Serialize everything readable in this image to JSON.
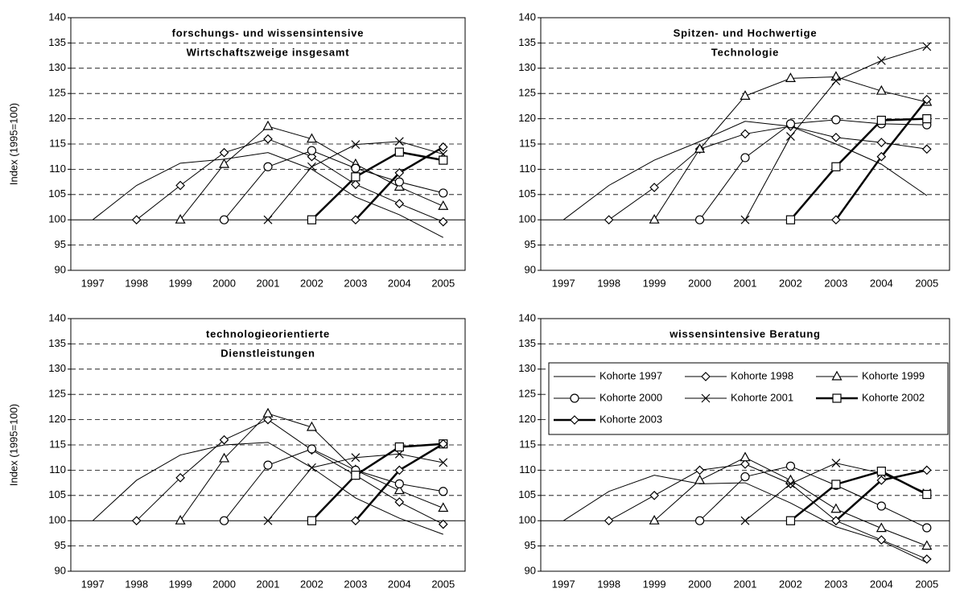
{
  "chart_data": [
    {
      "type": "line",
      "title": [
        "forschungs- und wissensintensive",
        "Wirtschaftszweige insgesamt"
      ],
      "ylabel": "Index (1995=100)",
      "categories": [
        "1997",
        "1998",
        "1999",
        "2000",
        "2001",
        "2002",
        "2003",
        "2004",
        "2005"
      ],
      "ylim": [
        90,
        140
      ],
      "yticks": [
        90,
        95,
        100,
        105,
        110,
        115,
        120,
        125,
        130,
        135,
        140
      ],
      "grid": "dashed",
      "hline": 100,
      "series": [
        {
          "color": "#000000",
          "marker": "none",
          "width": 1,
          "values": [
            100,
            106.8,
            111.2,
            112,
            113.3,
            110,
            104.5,
            101,
            96.5
          ]
        },
        {
          "color": "#000000",
          "marker": "diamond",
          "width": 1,
          "values": [
            null,
            100,
            106.8,
            113.3,
            116,
            112.5,
            107,
            103.2,
            99.6
          ]
        },
        {
          "color": "#000000",
          "marker": "triangle",
          "width": 1,
          "values": [
            null,
            null,
            100,
            111,
            118.5,
            116,
            111,
            106.5,
            102.7
          ]
        },
        {
          "color": "#000000",
          "marker": "circle",
          "width": 1,
          "values": [
            null,
            null,
            null,
            100,
            110.5,
            113.7,
            110.2,
            107.5,
            105.3
          ]
        },
        {
          "color": "#000000",
          "marker": "x",
          "width": 1,
          "values": [
            null,
            null,
            null,
            null,
            100,
            110.5,
            114.9,
            115.5,
            113
          ]
        },
        {
          "color": "#000000",
          "marker": "square",
          "width": 2.5,
          "values": [
            null,
            null,
            null,
            null,
            null,
            100,
            108.5,
            113.4,
            111.8
          ]
        },
        {
          "color": "#000000",
          "marker": "diamond",
          "width": 2.5,
          "values": [
            null,
            null,
            null,
            null,
            null,
            null,
            100,
            109.3,
            114.4
          ]
        }
      ]
    },
    {
      "type": "line",
      "title": [
        "Spitzen- und Hochwertige",
        "Technologie"
      ],
      "categories": [
        "1997",
        "1998",
        "1999",
        "2000",
        "2001",
        "2002",
        "2003",
        "2004",
        "2005"
      ],
      "ylim": [
        90,
        140
      ],
      "yticks": [
        90,
        95,
        100,
        105,
        110,
        115,
        120,
        125,
        130,
        135,
        140
      ],
      "grid": "dashed",
      "hline": 100,
      "series": [
        {
          "color": "#000000",
          "marker": "none",
          "width": 1,
          "values": [
            100,
            106.8,
            111.8,
            115.5,
            119.5,
            118.5,
            115,
            111,
            104.8
          ]
        },
        {
          "color": "#000000",
          "marker": "diamond",
          "width": 1,
          "values": [
            null,
            100,
            106.4,
            114,
            117,
            118.5,
            116.3,
            115.3,
            114
          ]
        },
        {
          "color": "#000000",
          "marker": "triangle",
          "width": 1,
          "values": [
            null,
            null,
            100,
            114,
            124.5,
            128,
            128.3,
            125.5,
            123.3
          ]
        },
        {
          "color": "#000000",
          "marker": "circle",
          "width": 1,
          "values": [
            null,
            null,
            null,
            100,
            112.3,
            119,
            119.8,
            119,
            118.8
          ]
        },
        {
          "color": "#000000",
          "marker": "x",
          "width": 1,
          "values": [
            null,
            null,
            null,
            null,
            100,
            116.5,
            127.5,
            131.5,
            134.3
          ]
        },
        {
          "color": "#000000",
          "marker": "square",
          "width": 2.5,
          "values": [
            null,
            null,
            null,
            null,
            null,
            100,
            110.5,
            119.7,
            120
          ]
        },
        {
          "color": "#000000",
          "marker": "diamond",
          "width": 2.5,
          "values": [
            null,
            null,
            null,
            null,
            null,
            null,
            100,
            112.5,
            123.8
          ]
        }
      ]
    },
    {
      "type": "line",
      "title": [
        "technologieorientierte",
        "Dienstleistungen"
      ],
      "ylabel": "Index (1995=100)",
      "categories": [
        "1997",
        "1998",
        "1999",
        "2000",
        "2001",
        "2002",
        "2003",
        "2004",
        "2005"
      ],
      "ylim": [
        90,
        140
      ],
      "yticks": [
        90,
        95,
        100,
        105,
        110,
        115,
        120,
        125,
        130,
        135,
        140
      ],
      "grid": "dashed",
      "hline": 100,
      "series": [
        {
          "color": "#000000",
          "marker": "none",
          "width": 1,
          "values": [
            100,
            108,
            113,
            115,
            115.5,
            110.5,
            104.5,
            100.5,
            97.3
          ]
        },
        {
          "color": "#000000",
          "marker": "diamond",
          "width": 1,
          "values": [
            null,
            100,
            108.5,
            116,
            120,
            114,
            109,
            103.7,
            99.3
          ]
        },
        {
          "color": "#000000",
          "marker": "triangle",
          "width": 1,
          "values": [
            null,
            null,
            100,
            112.3,
            121.2,
            118.5,
            110,
            106,
            102.5
          ]
        },
        {
          "color": "#000000",
          "marker": "circle",
          "width": 1,
          "values": [
            null,
            null,
            null,
            100,
            111,
            114.2,
            110,
            107.3,
            105.8
          ]
        },
        {
          "color": "#000000",
          "marker": "x",
          "width": 1,
          "values": [
            null,
            null,
            null,
            null,
            100,
            110.5,
            112.5,
            113.2,
            111.5
          ]
        },
        {
          "color": "#000000",
          "marker": "square",
          "width": 2.5,
          "values": [
            null,
            null,
            null,
            null,
            null,
            100,
            109,
            114.6,
            115.2
          ]
        },
        {
          "color": "#000000",
          "marker": "diamond",
          "width": 2.5,
          "values": [
            null,
            null,
            null,
            null,
            null,
            null,
            100,
            110,
            115.2
          ]
        }
      ]
    },
    {
      "type": "line",
      "title": [
        "wissensintensive Beratung"
      ],
      "legend": "upper",
      "categories": [
        "1997",
        "1998",
        "1999",
        "2000",
        "2001",
        "2002",
        "2003",
        "2004",
        "2005"
      ],
      "ylim": [
        90,
        140
      ],
      "yticks": [
        90,
        95,
        100,
        105,
        110,
        115,
        120,
        125,
        130,
        135,
        140
      ],
      "grid": "dashed",
      "hline": 100,
      "series": [
        {
          "name": "Kohorte 1997",
          "color": "#000000",
          "marker": "none",
          "width": 1,
          "values": [
            100,
            105.8,
            109,
            107.3,
            107.5,
            103.5,
            98.8,
            96,
            91.7
          ]
        },
        {
          "name": "Kohorte 1998",
          "color": "#000000",
          "marker": "diamond",
          "width": 1,
          "values": [
            null,
            100,
            105,
            110,
            111.2,
            107.3,
            100,
            96.2,
            92.4
          ]
        },
        {
          "name": "Kohorte 1999",
          "color": "#000000",
          "marker": "triangle",
          "width": 1,
          "values": [
            null,
            null,
            100,
            108,
            112.5,
            108,
            102.3,
            98.5,
            95
          ]
        },
        {
          "name": "Kohorte 2000",
          "color": "#000000",
          "marker": "circle",
          "width": 1,
          "values": [
            null,
            null,
            null,
            100,
            108.7,
            110.8,
            107,
            102.9,
            98.6
          ]
        },
        {
          "name": "Kohorte 2001",
          "color": "#000000",
          "marker": "x",
          "width": 1,
          "values": [
            null,
            null,
            null,
            null,
            100,
            107.3,
            111.4,
            109.4,
            105.5
          ]
        },
        {
          "name": "Kohorte 2002",
          "color": "#000000",
          "marker": "square",
          "width": 2.5,
          "values": [
            null,
            null,
            null,
            null,
            null,
            100,
            107.2,
            109.8,
            105.2
          ]
        },
        {
          "name": "Kohorte 2003",
          "color": "#000000",
          "marker": "diamond",
          "width": 2.5,
          "values": [
            null,
            null,
            null,
            null,
            null,
            null,
            100,
            108,
            110
          ]
        }
      ]
    }
  ]
}
